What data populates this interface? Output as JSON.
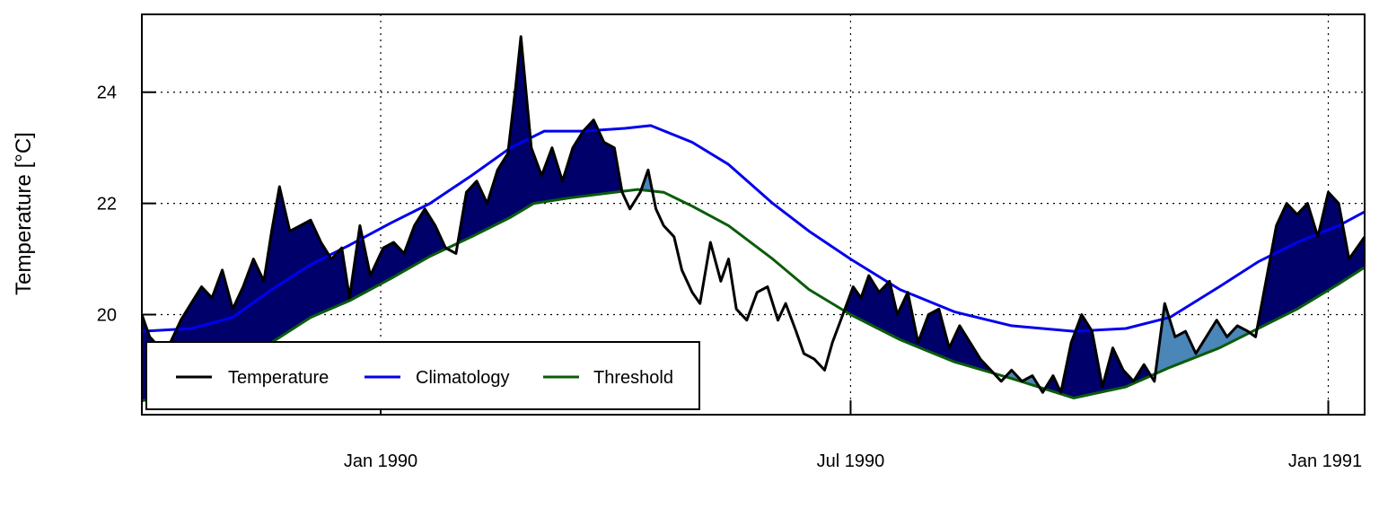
{
  "chart_data": {
    "type": "line",
    "title": "",
    "xlabel": "",
    "ylabel": "Temperature [°C]",
    "x_range": [
      "1989-10-01",
      "1991-01-15"
    ],
    "ylim": [
      18.2,
      25.4
    ],
    "grid": true,
    "legend_position": "bottom-left",
    "x_ticks": [
      {
        "date": "1990-01-01",
        "label": "Jan 1990"
      },
      {
        "date": "1990-07-01",
        "label": "Jul 1990"
      },
      {
        "date": "1991-01-01",
        "label": "Jan 1991"
      }
    ],
    "y_ticks": [
      20,
      22,
      24
    ],
    "legend": [
      {
        "label": "Temperature",
        "color": "#000000"
      },
      {
        "label": "Climatology",
        "color": "#0000ee"
      },
      {
        "label": "Threshold",
        "color": "#0a5c0a"
      }
    ],
    "fill_colors": {
      "major_event": "#00006b",
      "minor_event": "#4a86b8"
    },
    "series": [
      {
        "name": "Temperature",
        "color": "#000000",
        "points": [
          [
            "1989-10-01",
            20.0
          ],
          [
            "1989-10-04",
            19.6
          ],
          [
            "1989-10-08",
            19.4
          ],
          [
            "1989-10-12",
            19.5
          ],
          [
            "1989-10-16",
            19.9
          ],
          [
            "1989-10-20",
            20.2
          ],
          [
            "1989-10-24",
            20.5
          ],
          [
            "1989-10-28",
            20.3
          ],
          [
            "1989-11-01",
            20.8
          ],
          [
            "1989-11-05",
            20.1
          ],
          [
            "1989-11-09",
            20.5
          ],
          [
            "1989-11-13",
            21.0
          ],
          [
            "1989-11-17",
            20.6
          ],
          [
            "1989-11-20",
            21.5
          ],
          [
            "1989-11-23",
            22.3
          ],
          [
            "1989-11-27",
            21.5
          ],
          [
            "1989-12-01",
            21.6
          ],
          [
            "1989-12-05",
            21.7
          ],
          [
            "1989-12-09",
            21.3
          ],
          [
            "1989-12-13",
            21.0
          ],
          [
            "1989-12-17",
            21.2
          ],
          [
            "1989-12-20",
            20.3
          ],
          [
            "1989-12-24",
            21.6
          ],
          [
            "1989-12-28",
            20.7
          ],
          [
            "1990-01-02",
            21.2
          ],
          [
            "1990-01-06",
            21.3
          ],
          [
            "1990-01-10",
            21.1
          ],
          [
            "1990-01-14",
            21.6
          ],
          [
            "1990-01-18",
            21.9
          ],
          [
            "1990-01-22",
            21.6
          ],
          [
            "1990-01-26",
            21.2
          ],
          [
            "1990-01-30",
            21.1
          ],
          [
            "1990-02-03",
            22.2
          ],
          [
            "1990-02-07",
            22.4
          ],
          [
            "1990-02-11",
            22.0
          ],
          [
            "1990-02-15",
            22.6
          ],
          [
            "1990-02-19",
            22.9
          ],
          [
            "1990-02-22",
            24.1
          ],
          [
            "1990-02-24",
            25.0
          ],
          [
            "1990-02-28",
            23.0
          ],
          [
            "1990-03-04",
            22.5
          ],
          [
            "1990-03-08",
            23.0
          ],
          [
            "1990-03-12",
            22.4
          ],
          [
            "1990-03-16",
            23.0
          ],
          [
            "1990-03-20",
            23.3
          ],
          [
            "1990-03-24",
            23.5
          ],
          [
            "1990-03-28",
            23.1
          ],
          [
            "1990-04-01",
            23.0
          ],
          [
            "1990-04-04",
            22.2
          ],
          [
            "1990-04-07",
            21.9
          ],
          [
            "1990-04-11",
            22.2
          ],
          [
            "1990-04-14",
            22.6
          ],
          [
            "1990-04-17",
            21.9
          ],
          [
            "1990-04-20",
            21.6
          ],
          [
            "1990-04-24",
            21.4
          ],
          [
            "1990-04-27",
            20.8
          ],
          [
            "1990-05-01",
            20.4
          ],
          [
            "1990-05-04",
            20.2
          ],
          [
            "1990-05-08",
            21.3
          ],
          [
            "1990-05-12",
            20.6
          ],
          [
            "1990-05-15",
            21.0
          ],
          [
            "1990-05-18",
            20.1
          ],
          [
            "1990-05-22",
            19.9
          ],
          [
            "1990-05-26",
            20.4
          ],
          [
            "1990-05-30",
            20.5
          ],
          [
            "1990-06-03",
            19.9
          ],
          [
            "1990-06-06",
            20.2
          ],
          [
            "1990-06-10",
            19.7
          ],
          [
            "1990-06-13",
            19.3
          ],
          [
            "1990-06-17",
            19.2
          ],
          [
            "1990-06-21",
            19.0
          ],
          [
            "1990-06-24",
            19.5
          ],
          [
            "1990-06-28",
            20.0
          ],
          [
            "1990-07-02",
            20.5
          ],
          [
            "1990-07-05",
            20.3
          ],
          [
            "1990-07-08",
            20.7
          ],
          [
            "1990-07-12",
            20.4
          ],
          [
            "1990-07-16",
            20.6
          ],
          [
            "1990-07-19",
            20.0
          ],
          [
            "1990-07-23",
            20.4
          ],
          [
            "1990-07-27",
            19.5
          ],
          [
            "1990-07-31",
            20.0
          ],
          [
            "1990-08-04",
            20.1
          ],
          [
            "1990-08-08",
            19.4
          ],
          [
            "1990-08-12",
            19.8
          ],
          [
            "1990-08-16",
            19.5
          ],
          [
            "1990-08-20",
            19.2
          ],
          [
            "1990-08-24",
            19.0
          ],
          [
            "1990-08-28",
            18.8
          ],
          [
            "1990-09-01",
            19.0
          ],
          [
            "1990-09-05",
            18.8
          ],
          [
            "1990-09-09",
            18.9
          ],
          [
            "1990-09-13",
            18.6
          ],
          [
            "1990-09-17",
            18.9
          ],
          [
            "1990-09-20",
            18.6
          ],
          [
            "1990-09-24",
            19.5
          ],
          [
            "1990-09-28",
            20.0
          ],
          [
            "1990-10-02",
            19.7
          ],
          [
            "1990-10-06",
            18.7
          ],
          [
            "1990-10-10",
            19.4
          ],
          [
            "1990-10-14",
            19.0
          ],
          [
            "1990-10-18",
            18.8
          ],
          [
            "1990-10-22",
            19.1
          ],
          [
            "1990-10-26",
            18.8
          ],
          [
            "1990-10-30",
            20.2
          ],
          [
            "1990-11-03",
            19.6
          ],
          [
            "1990-11-07",
            19.7
          ],
          [
            "1990-11-11",
            19.3
          ],
          [
            "1990-11-15",
            19.6
          ],
          [
            "1990-11-19",
            19.9
          ],
          [
            "1990-11-23",
            19.6
          ],
          [
            "1990-11-27",
            19.8
          ],
          [
            "1990-12-01",
            19.7
          ],
          [
            "1990-12-04",
            19.6
          ],
          [
            "1990-12-08",
            20.6
          ],
          [
            "1990-12-12",
            21.6
          ],
          [
            "1990-12-16",
            22.0
          ],
          [
            "1990-12-20",
            21.8
          ],
          [
            "1990-12-24",
            22.0
          ],
          [
            "1990-12-28",
            21.4
          ],
          [
            "1991-01-01",
            22.2
          ],
          [
            "1991-01-05",
            22.0
          ],
          [
            "1991-01-09",
            21.0
          ],
          [
            "1991-01-15",
            21.4
          ]
        ]
      },
      {
        "name": "Climatology",
        "color": "#0000ee",
        "points": [
          [
            "1989-10-01",
            19.7
          ],
          [
            "1989-10-20",
            19.75
          ],
          [
            "1989-11-05",
            19.95
          ],
          [
            "1989-11-20",
            20.45
          ],
          [
            "1989-12-05",
            20.9
          ],
          [
            "1989-12-20",
            21.25
          ],
          [
            "1990-01-05",
            21.65
          ],
          [
            "1990-01-20",
            22.0
          ],
          [
            "1990-02-05",
            22.5
          ],
          [
            "1990-02-20",
            23.0
          ],
          [
            "1990-03-05",
            23.3
          ],
          [
            "1990-03-20",
            23.3
          ],
          [
            "1990-04-05",
            23.35
          ],
          [
            "1990-04-15",
            23.4
          ],
          [
            "1990-05-01",
            23.1
          ],
          [
            "1990-05-15",
            22.7
          ],
          [
            "1990-06-01",
            22.0
          ],
          [
            "1990-06-15",
            21.5
          ],
          [
            "1990-07-01",
            21.0
          ],
          [
            "1990-07-20",
            20.45
          ],
          [
            "1990-08-10",
            20.05
          ],
          [
            "1990-09-01",
            19.8
          ],
          [
            "1990-09-25",
            19.7
          ],
          [
            "1990-10-15",
            19.75
          ],
          [
            "1990-11-01",
            19.95
          ],
          [
            "1990-11-20",
            20.5
          ],
          [
            "1990-12-05",
            20.95
          ],
          [
            "1990-12-20",
            21.3
          ],
          [
            "1991-01-05",
            21.6
          ],
          [
            "1991-01-15",
            21.85
          ]
        ]
      },
      {
        "name": "Threshold",
        "color": "#0a5c0a",
        "points": [
          [
            "1989-10-01",
            18.45
          ],
          [
            "1989-10-20",
            18.6
          ],
          [
            "1989-11-05",
            18.95
          ],
          [
            "1989-11-20",
            19.5
          ],
          [
            "1989-12-05",
            19.95
          ],
          [
            "1989-12-20",
            20.25
          ],
          [
            "1990-01-05",
            20.65
          ],
          [
            "1990-01-20",
            21.05
          ],
          [
            "1990-02-05",
            21.4
          ],
          [
            "1990-02-20",
            21.75
          ],
          [
            "1990-03-01",
            22.0
          ],
          [
            "1990-03-15",
            22.1
          ],
          [
            "1990-04-01",
            22.2
          ],
          [
            "1990-04-10",
            22.25
          ],
          [
            "1990-04-20",
            22.2
          ],
          [
            "1990-05-01",
            21.95
          ],
          [
            "1990-05-15",
            21.6
          ],
          [
            "1990-06-01",
            21.0
          ],
          [
            "1990-06-15",
            20.45
          ],
          [
            "1990-07-01",
            20.0
          ],
          [
            "1990-07-20",
            19.55
          ],
          [
            "1990-08-10",
            19.15
          ],
          [
            "1990-09-01",
            18.85
          ],
          [
            "1990-09-25",
            18.5
          ],
          [
            "1990-10-15",
            18.7
          ],
          [
            "1990-11-01",
            19.05
          ],
          [
            "1990-11-20",
            19.4
          ],
          [
            "1990-12-05",
            19.75
          ],
          [
            "1990-12-20",
            20.1
          ],
          [
            "1991-01-05",
            20.55
          ],
          [
            "1991-01-15",
            20.85
          ]
        ]
      }
    ]
  }
}
